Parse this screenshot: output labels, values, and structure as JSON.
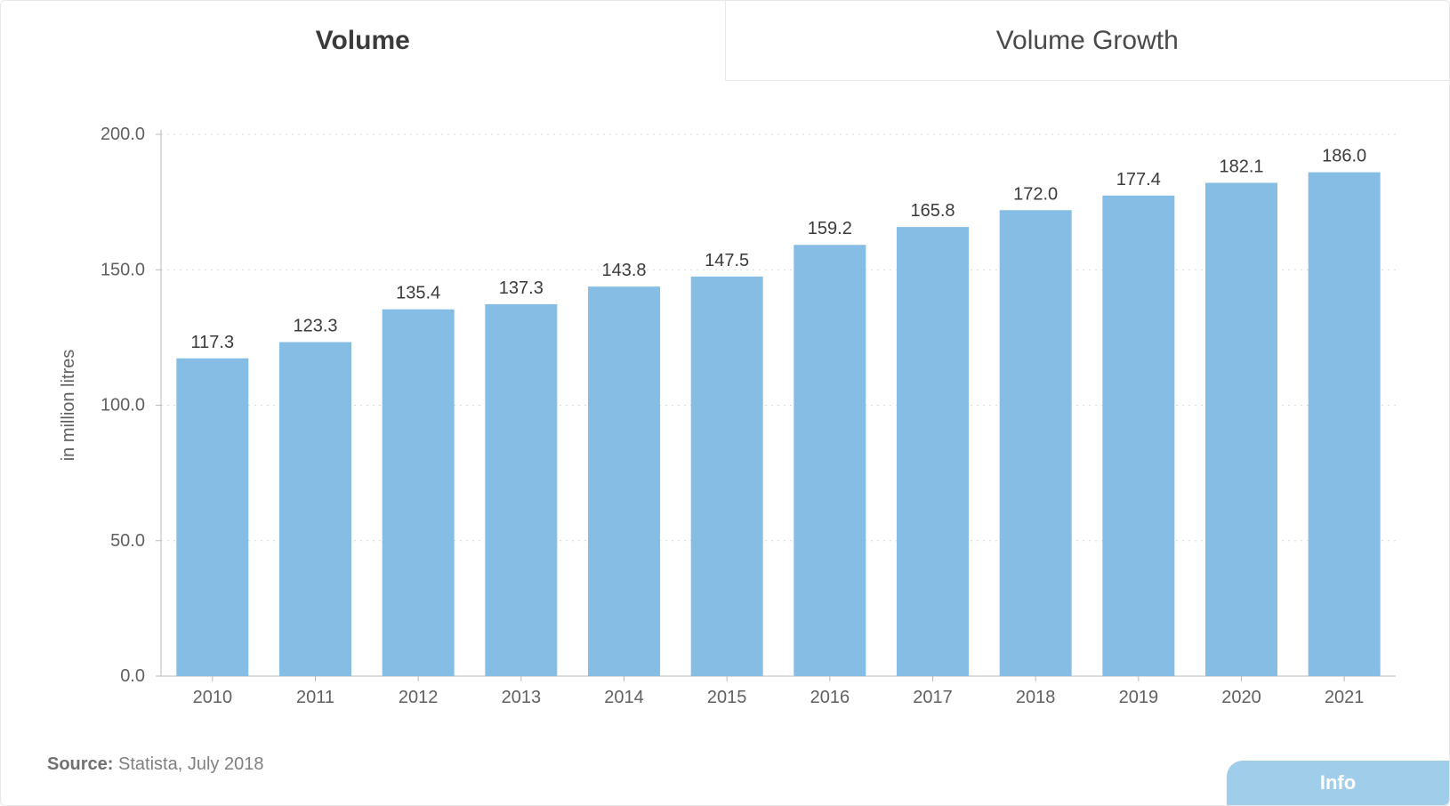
{
  "tabs": {
    "active": "Volume",
    "inactive": "Volume Growth"
  },
  "chart": {
    "type": "bar",
    "y_axis_title": "in million litres",
    "categories": [
      "2010",
      "2011",
      "2012",
      "2013",
      "2014",
      "2015",
      "2016",
      "2017",
      "2018",
      "2019",
      "2020",
      "2021"
    ],
    "values": [
      117.3,
      123.3,
      135.4,
      137.3,
      143.8,
      147.5,
      159.2,
      165.8,
      172.0,
      177.4,
      182.1,
      186.0
    ],
    "value_labels": [
      "117.3",
      "123.3",
      "135.4",
      "137.3",
      "143.8",
      "147.5",
      "159.2",
      "165.8",
      "172.0",
      "177.4",
      "182.1",
      "186.0"
    ],
    "ymin": 0.0,
    "ymax": 200.0,
    "ytick_step": 50.0,
    "ytick_labels": [
      "0.0",
      "50.0",
      "100.0",
      "150.0",
      "200.0"
    ],
    "bar_color": "#86bde4",
    "grid_color": "#d9d9d9",
    "axis_line_color": "#b8b8b8",
    "axis_text_color": "#606060",
    "value_label_color": "#3b3b3b",
    "background_color": "#ffffff",
    "bar_gap_ratio": 0.3,
    "label_fontsize": 20,
    "title_fontsize": 30,
    "accent_color": "#a0cdea"
  },
  "source": {
    "prefix": "Source:",
    "text": " Statista, July 2018"
  },
  "info_button": {
    "label": "Info"
  }
}
